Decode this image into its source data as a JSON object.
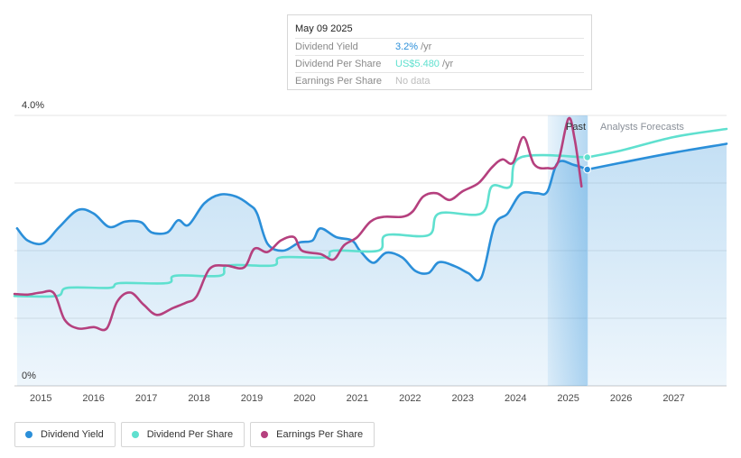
{
  "tooltip": {
    "date": "May 09 2025",
    "rows": [
      {
        "label": "Dividend Yield",
        "value": "3.2%",
        "unit": "/yr",
        "color": "#2b8fd9"
      },
      {
        "label": "Dividend Per Share",
        "value": "US$5.480",
        "unit": "/yr",
        "color": "#5fe0cf"
      },
      {
        "label": "Earnings Per Share",
        "value": "No data",
        "unit": "",
        "color": "#bdbdbd"
      }
    ]
  },
  "regions": {
    "past_label": "Past",
    "forecast_label": "Analysts Forecasts"
  },
  "legend": [
    {
      "label": "Dividend Yield",
      "color": "#2b8fd9"
    },
    {
      "label": "Dividend Per Share",
      "color": "#5fe0cf"
    },
    {
      "label": "Earnings Per Share",
      "color": "#b5407e"
    }
  ],
  "chart_data": {
    "type": "line",
    "title": "",
    "xlabel": "",
    "ylabel": "",
    "x_ticks": [
      "2015",
      "2016",
      "2017",
      "2018",
      "2019",
      "2020",
      "2021",
      "2022",
      "2023",
      "2024",
      "2025",
      "2026",
      "2027"
    ],
    "y_ticks": [
      "0%",
      "4.0%"
    ],
    "xlim": [
      2014.5,
      2028.0
    ],
    "ylim": [
      0,
      4.0
    ],
    "grid": true,
    "today": 2025.36,
    "series": [
      {
        "name": "Dividend Yield",
        "color": "#2b8fd9",
        "area": true,
        "points": [
          [
            2014.55,
            2.33
          ],
          [
            2014.75,
            2.15
          ],
          [
            2015.05,
            2.11
          ],
          [
            2015.35,
            2.35
          ],
          [
            2015.7,
            2.6
          ],
          [
            2016.0,
            2.55
          ],
          [
            2016.3,
            2.35
          ],
          [
            2016.6,
            2.43
          ],
          [
            2016.9,
            2.42
          ],
          [
            2017.1,
            2.27
          ],
          [
            2017.4,
            2.27
          ],
          [
            2017.6,
            2.45
          ],
          [
            2017.8,
            2.38
          ],
          [
            2018.1,
            2.7
          ],
          [
            2018.4,
            2.83
          ],
          [
            2018.7,
            2.8
          ],
          [
            2018.95,
            2.68
          ],
          [
            2019.1,
            2.55
          ],
          [
            2019.3,
            2.1
          ],
          [
            2019.6,
            2.0
          ],
          [
            2019.9,
            2.12
          ],
          [
            2020.15,
            2.15
          ],
          [
            2020.3,
            2.33
          ],
          [
            2020.6,
            2.2
          ],
          [
            2020.9,
            2.15
          ],
          [
            2021.05,
            2.0
          ],
          [
            2021.3,
            1.82
          ],
          [
            2021.55,
            1.97
          ],
          [
            2021.85,
            1.9
          ],
          [
            2022.1,
            1.7
          ],
          [
            2022.35,
            1.67
          ],
          [
            2022.55,
            1.83
          ],
          [
            2022.85,
            1.77
          ],
          [
            2023.1,
            1.67
          ],
          [
            2023.35,
            1.6
          ],
          [
            2023.6,
            2.37
          ],
          [
            2023.85,
            2.55
          ],
          [
            2024.1,
            2.84
          ],
          [
            2024.4,
            2.85
          ],
          [
            2024.6,
            2.87
          ],
          [
            2024.8,
            3.3
          ],
          [
            2025.1,
            3.27
          ],
          [
            2025.36,
            3.2
          ],
          [
            2026.0,
            3.3
          ],
          [
            2027.0,
            3.45
          ],
          [
            2028.0,
            3.58
          ]
        ]
      },
      {
        "name": "Dividend Per Share",
        "color": "#5fe0cf",
        "area": false,
        "points": [
          [
            2014.5,
            1.33
          ],
          [
            2015.3,
            1.33
          ],
          [
            2015.5,
            1.45
          ],
          [
            2016.3,
            1.45
          ],
          [
            2016.5,
            1.52
          ],
          [
            2017.4,
            1.52
          ],
          [
            2017.55,
            1.63
          ],
          [
            2018.4,
            1.63
          ],
          [
            2018.55,
            1.78
          ],
          [
            2019.4,
            1.78
          ],
          [
            2019.55,
            1.9
          ],
          [
            2020.4,
            1.9
          ],
          [
            2020.55,
            2.0
          ],
          [
            2021.4,
            2.0
          ],
          [
            2021.55,
            2.23
          ],
          [
            2022.35,
            2.23
          ],
          [
            2022.55,
            2.55
          ],
          [
            2023.35,
            2.55
          ],
          [
            2023.55,
            2.95
          ],
          [
            2023.9,
            2.95
          ],
          [
            2024.1,
            3.38
          ],
          [
            2025.36,
            3.38
          ],
          [
            2026.0,
            3.48
          ],
          [
            2027.0,
            3.68
          ],
          [
            2028.0,
            3.8
          ]
        ]
      },
      {
        "name": "Earnings Per Share",
        "color": "#b5407e",
        "area": false,
        "points": [
          [
            2014.5,
            1.36
          ],
          [
            2014.75,
            1.35
          ],
          [
            2015.0,
            1.38
          ],
          [
            2015.25,
            1.37
          ],
          [
            2015.45,
            0.98
          ],
          [
            2015.7,
            0.85
          ],
          [
            2016.0,
            0.87
          ],
          [
            2016.25,
            0.85
          ],
          [
            2016.45,
            1.25
          ],
          [
            2016.7,
            1.38
          ],
          [
            2016.95,
            1.2
          ],
          [
            2017.2,
            1.05
          ],
          [
            2017.5,
            1.15
          ],
          [
            2017.75,
            1.23
          ],
          [
            2017.95,
            1.32
          ],
          [
            2018.2,
            1.73
          ],
          [
            2018.5,
            1.78
          ],
          [
            2018.85,
            1.75
          ],
          [
            2019.05,
            2.03
          ],
          [
            2019.3,
            1.98
          ],
          [
            2019.55,
            2.15
          ],
          [
            2019.8,
            2.2
          ],
          [
            2019.95,
            2.0
          ],
          [
            2020.3,
            1.95
          ],
          [
            2020.55,
            1.87
          ],
          [
            2020.75,
            2.08
          ],
          [
            2021.0,
            2.2
          ],
          [
            2021.25,
            2.43
          ],
          [
            2021.5,
            2.5
          ],
          [
            2021.85,
            2.5
          ],
          [
            2022.05,
            2.58
          ],
          [
            2022.25,
            2.8
          ],
          [
            2022.5,
            2.85
          ],
          [
            2022.75,
            2.75
          ],
          [
            2023.0,
            2.88
          ],
          [
            2023.3,
            3.0
          ],
          [
            2023.55,
            3.23
          ],
          [
            2023.75,
            3.35
          ],
          [
            2023.95,
            3.3
          ],
          [
            2024.15,
            3.68
          ],
          [
            2024.35,
            3.28
          ],
          [
            2024.6,
            3.22
          ],
          [
            2024.8,
            3.3
          ],
          [
            2025.0,
            3.95
          ],
          [
            2025.12,
            3.65
          ],
          [
            2025.25,
            2.95
          ]
        ]
      }
    ]
  }
}
